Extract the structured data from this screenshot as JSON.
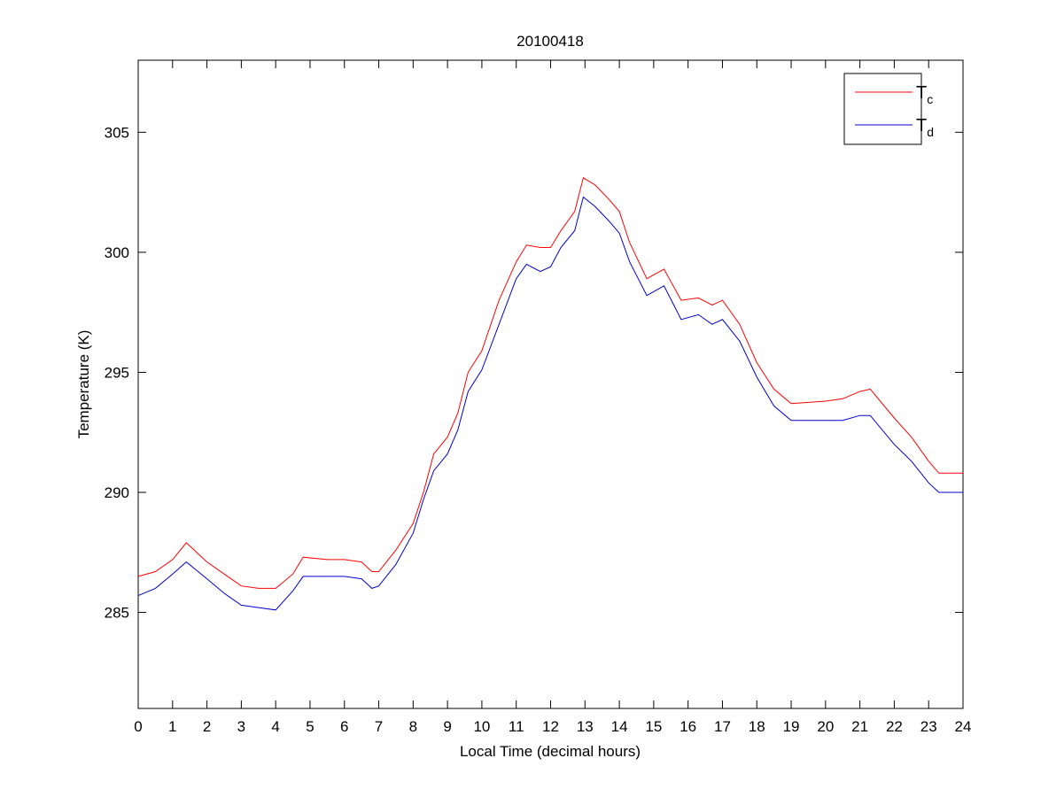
{
  "chart_data": {
    "type": "line",
    "title": "20100418",
    "xlabel": "Local Time (decimal hours)",
    "ylabel": "Temperature (K)",
    "xlim": [
      0,
      24
    ],
    "ylim": [
      281,
      308
    ],
    "xticks": [
      0,
      1,
      2,
      3,
      4,
      5,
      6,
      7,
      8,
      9,
      10,
      11,
      12,
      13,
      14,
      15,
      16,
      17,
      18,
      19,
      20,
      21,
      22,
      23,
      24
    ],
    "yticks": [
      285,
      290,
      295,
      300,
      305
    ],
    "grid": false,
    "legend_position": "top-right",
    "x": [
      0,
      0.5,
      1,
      1.4,
      2,
      2.5,
      3,
      3.5,
      4,
      4.5,
      4.8,
      5.5,
      6,
      6.5,
      6.8,
      7,
      7.5,
      8,
      8.3,
      8.6,
      9,
      9.3,
      9.6,
      10,
      10.5,
      11,
      11.3,
      11.7,
      12,
      12.3,
      12.7,
      12.95,
      13.3,
      13.7,
      14,
      14.3,
      14.8,
      15.3,
      15.8,
      16.3,
      16.7,
      17,
      17.5,
      18,
      18.5,
      19,
      20,
      20.5,
      21,
      21.3,
      22,
      22.5,
      23,
      23.3,
      24
    ],
    "series": [
      {
        "name": "T",
        "subscript": "c",
        "color": "#ff0000",
        "values": [
          286.5,
          286.7,
          287.2,
          287.9,
          287.1,
          286.6,
          286.1,
          286.0,
          286.0,
          286.6,
          287.3,
          287.2,
          287.2,
          287.1,
          286.7,
          286.7,
          287.6,
          288.7,
          290.0,
          291.6,
          292.3,
          293.3,
          295.0,
          295.9,
          298.0,
          299.6,
          300.3,
          300.2,
          300.2,
          300.9,
          301.7,
          303.1,
          302.8,
          302.2,
          301.7,
          300.4,
          298.9,
          299.3,
          298.0,
          298.1,
          297.8,
          298.0,
          297.0,
          295.4,
          294.3,
          293.7,
          293.8,
          293.9,
          294.2,
          294.3,
          293.1,
          292.3,
          291.3,
          290.8,
          290.8
        ]
      },
      {
        "name": "T",
        "subscript": "d",
        "color": "#0000cc",
        "values": [
          285.7,
          286.0,
          286.6,
          287.1,
          286.4,
          285.8,
          285.3,
          285.2,
          285.1,
          285.9,
          286.5,
          286.5,
          286.5,
          286.4,
          286.0,
          286.1,
          287.0,
          288.3,
          289.7,
          290.9,
          291.6,
          292.6,
          294.2,
          295.1,
          297.0,
          298.9,
          299.5,
          299.2,
          299.4,
          300.2,
          300.9,
          302.3,
          301.9,
          301.3,
          300.8,
          299.6,
          298.2,
          298.6,
          297.2,
          297.4,
          297.0,
          297.2,
          296.3,
          294.8,
          293.6,
          293.0,
          293.0,
          293.0,
          293.2,
          293.2,
          292.0,
          291.3,
          290.4,
          290.0,
          290.0
        ]
      }
    ]
  }
}
